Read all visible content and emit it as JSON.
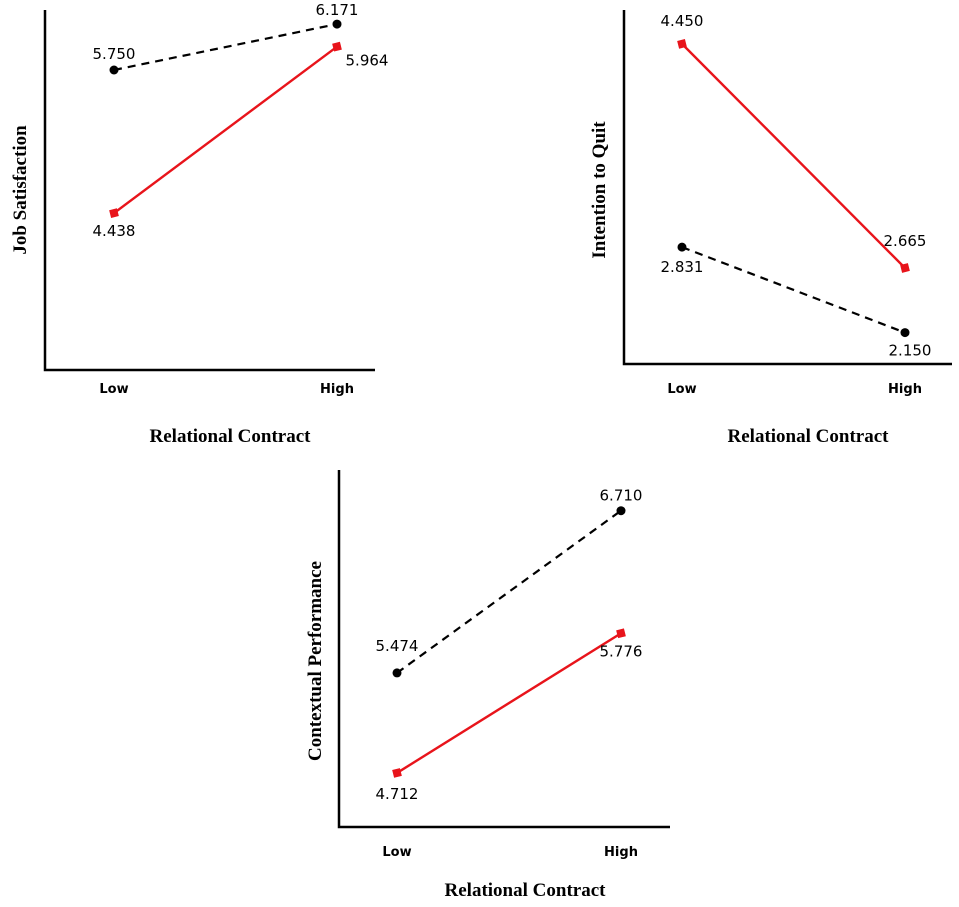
{
  "colors": {
    "dashed_series": "#000000",
    "solid_series": "#e8141b",
    "axis": "#000000"
  },
  "chart_data": [
    {
      "type": "line",
      "categories": [
        "Low",
        "High"
      ],
      "xlabel": "Relational Contract",
      "ylabel": "Job Satisfaction",
      "ylim": [
        3.0,
        6.3
      ],
      "series": [
        {
          "style": "dashed",
          "marker": "circle",
          "color": "#000000",
          "values": [
            5.75,
            6.171
          ],
          "labels": [
            "5.750",
            "6.171"
          ]
        },
        {
          "style": "solid",
          "marker": "square",
          "color": "#e8141b",
          "values": [
            4.438,
            5.964
          ],
          "labels": [
            "4.438",
            "5.964"
          ]
        }
      ]
    },
    {
      "type": "line",
      "categories": [
        "Low",
        "High"
      ],
      "xlabel": "Relational Contract",
      "ylabel": "Intention to Quit",
      "ylim": [
        1.9,
        4.72
      ],
      "series": [
        {
          "style": "dashed",
          "marker": "circle",
          "color": "#000000",
          "values": [
            2.831,
            2.15
          ],
          "labels": [
            "2.831",
            "2.150"
          ]
        },
        {
          "style": "solid",
          "marker": "square",
          "color": "#e8141b",
          "values": [
            4.45,
            2.665
          ],
          "labels": [
            "4.450",
            "2.665"
          ]
        }
      ]
    },
    {
      "type": "line",
      "categories": [
        "Low",
        "High"
      ],
      "xlabel": "Relational Contract",
      "ylabel": "Contextual Performance",
      "ylim": [
        4.3,
        7.02
      ],
      "series": [
        {
          "style": "dashed",
          "marker": "circle",
          "color": "#000000",
          "values": [
            5.474,
            6.71
          ],
          "labels": [
            "5.474",
            "6.710"
          ]
        },
        {
          "style": "solid",
          "marker": "square",
          "color": "#e8141b",
          "values": [
            4.712,
            5.776
          ],
          "labels": [
            "4.712",
            "5.776"
          ]
        }
      ]
    }
  ]
}
